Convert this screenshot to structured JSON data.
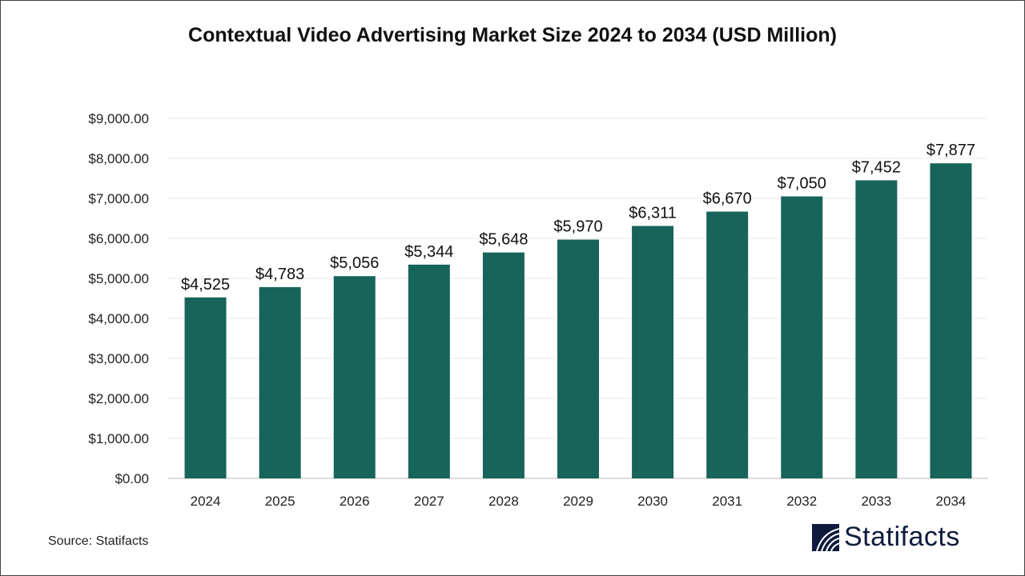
{
  "chart_data": {
    "type": "bar",
    "title": "Contextual Video Advertising Market Size 2024 to 2034 (USD Million)",
    "xlabel": "",
    "ylabel": "",
    "categories": [
      "2024",
      "2025",
      "2026",
      "2027",
      "2028",
      "2029",
      "2030",
      "2031",
      "2032",
      "2033",
      "2034"
    ],
    "values": [
      4525,
      4783,
      5056,
      5344,
      5648,
      5970,
      6311,
      6670,
      7050,
      7452,
      7877
    ],
    "data_labels": [
      "$4,525",
      "$4,783",
      "$5,056",
      "$5,344",
      "$5,648",
      "$5,970",
      "$6,311",
      "$6,670",
      "$7,050",
      "$7,452",
      "$7,877"
    ],
    "yticks": [
      0,
      1000,
      2000,
      3000,
      4000,
      5000,
      6000,
      7000,
      8000,
      9000
    ],
    "ytick_labels": [
      "$0.00",
      "$1,000.00",
      "$2,000.00",
      "$3,000.00",
      "$4,000.00",
      "$5,000.00",
      "$6,000.00",
      "$7,000.00",
      "$8,000.00",
      "$9,000.00"
    ],
    "ylim": [
      0,
      9000
    ],
    "grid": true,
    "bar_color": "#17645a"
  },
  "footer": {
    "source": "Source: Statifacts",
    "logo_text": "Statifacts",
    "logo_color": "#0f1b3d"
  }
}
